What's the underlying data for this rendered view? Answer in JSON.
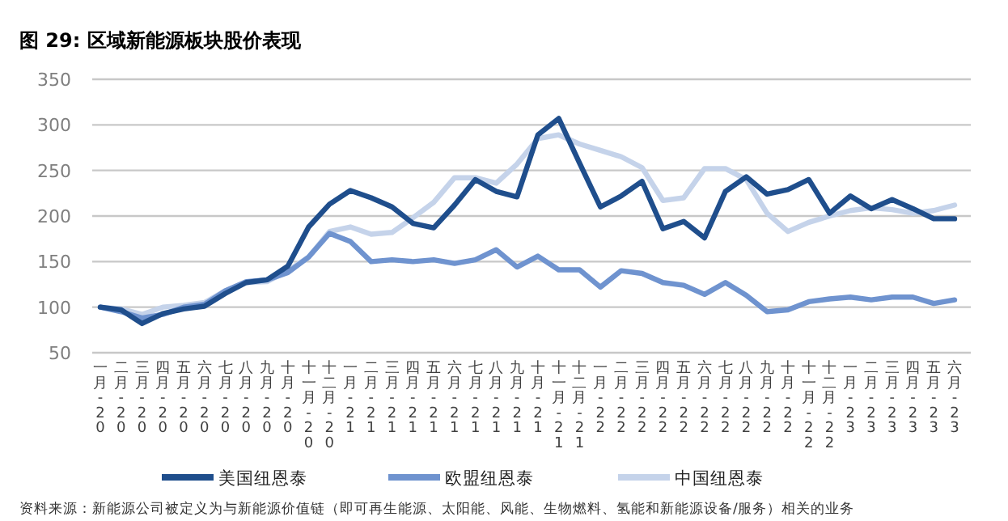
{
  "chart_data": {
    "type": "line",
    "title": "图 29:  区域新能源板块股价表现",
    "categories": [
      "一月-20",
      "二月-20",
      "三月-20",
      "四月-20",
      "五月-20",
      "六月-20",
      "七月-20",
      "八月-20",
      "九月-20",
      "十月-20",
      "十一月-20",
      "十二月-20",
      "一月-21",
      "二月-21",
      "三月-21",
      "四月-21",
      "五月-21",
      "六月-21",
      "七月-21",
      "八月-21",
      "九月-21",
      "十月-21",
      "十一月-21",
      "十二月-21",
      "一月-22",
      "二月-22",
      "三月-22",
      "四月-22",
      "五月-22",
      "六月-22",
      "七月-22",
      "八月-22",
      "九月-22",
      "十月-22",
      "十一月-22",
      "十二月-22",
      "一月-23",
      "二月-23",
      "三月-23",
      "四月-23",
      "五月-23",
      "六月-23"
    ],
    "series": [
      {
        "name": "美国纽恩泰",
        "color": "#1f4e8c",
        "values": [
          100,
          97,
          82,
          93,
          98,
          101,
          115,
          127,
          130,
          145,
          188,
          213,
          228,
          220,
          210,
          192,
          187,
          212,
          240,
          227,
          221,
          289,
          307,
          258,
          210,
          222,
          238,
          186,
          194,
          176,
          227,
          243,
          224,
          229,
          240,
          203,
          222,
          208,
          218,
          208,
          197,
          197
        ]
      },
      {
        "name": "欧盟纽恩泰",
        "color": "#6f93cf",
        "values": [
          100,
          95,
          88,
          92,
          100,
          103,
          118,
          128,
          130,
          138,
          155,
          181,
          172,
          150,
          152,
          150,
          152,
          148,
          152,
          163,
          144,
          156,
          141,
          141,
          122,
          140,
          137,
          127,
          124,
          114,
          127,
          113,
          95,
          97,
          106,
          109,
          111,
          108,
          111,
          111,
          104,
          108
        ]
      },
      {
        "name": "中国纽恩泰",
        "color": "#c5d3ea",
        "values": [
          100,
          98,
          92,
          100,
          102,
          105,
          118,
          127,
          128,
          140,
          155,
          183,
          188,
          180,
          182,
          198,
          215,
          242,
          242,
          236,
          257,
          285,
          289,
          279,
          272,
          265,
          253,
          217,
          220,
          252,
          252,
          240,
          203,
          183,
          193,
          200,
          206,
          209,
          207,
          203,
          206,
          212
        ]
      }
    ],
    "ylim": [
      50,
      350
    ],
    "yticks": [
      50,
      100,
      150,
      200,
      250,
      300,
      350
    ],
    "grid": "y",
    "legend": "bottom",
    "line_style": "solid",
    "marker": "none",
    "annotations": [
      "资料来源：新能源公司被定义为与新能源价值链（即可再生能源、太阳能、风能、生物燃料、氢能和新能源设备/服务）相关的业务"
    ]
  }
}
